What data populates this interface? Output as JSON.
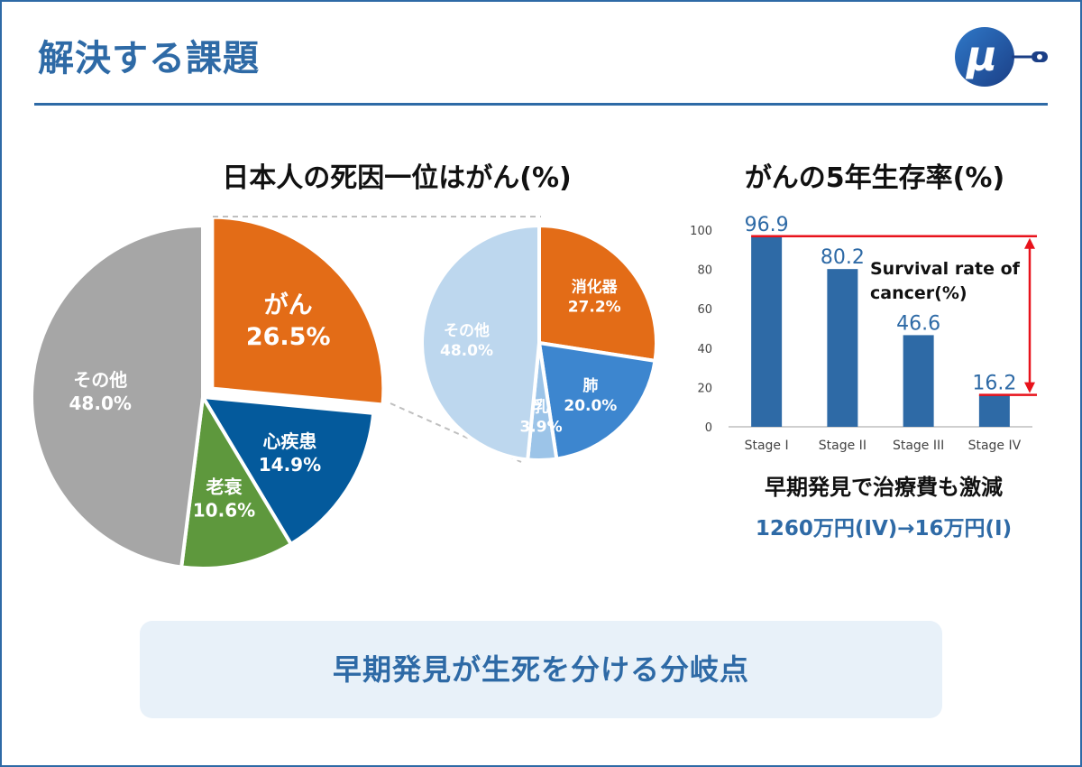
{
  "header": {
    "title": "解決する課題",
    "logo_text": "μ",
    "logo_icon": "mu-logo-icon"
  },
  "colors": {
    "accent": "#2e6aa6",
    "cancer": "#e36c17",
    "heart": "#045a9c",
    "old_age": "#5e983d",
    "other": "#a6a6a6",
    "digestive": "#e36c17",
    "lung": "#3d86cf",
    "breast": "#9cc4e8",
    "other_light": "#bdd7ee",
    "bar": "#2e6aa6",
    "arrow": "#e8121b"
  },
  "chart_data": [
    {
      "type": "pie",
      "title": "日本人の死因一位はがん(%)",
      "slices": [
        {
          "label": "がん",
          "value": 26.5,
          "value_text": "26.5%",
          "color": "#e36c17"
        },
        {
          "label": "心疾患",
          "value": 14.9,
          "value_text": "14.9%",
          "color": "#045a9c"
        },
        {
          "label": "老衰",
          "value": 10.6,
          "value_text": "10.6%",
          "color": "#5e983d"
        },
        {
          "label": "その他",
          "value": 48.0,
          "value_text": "48.0%",
          "color": "#a6a6a6"
        }
      ]
    },
    {
      "type": "pie",
      "title": "",
      "slices": [
        {
          "label": "消化器",
          "value": 27.2,
          "value_text": "27.2%",
          "color": "#e36c17"
        },
        {
          "label": "肺",
          "value": 20.0,
          "value_text": "20.0%",
          "color": "#3d86cf"
        },
        {
          "label": "乳",
          "value": 3.9,
          "value_text": "3.9%",
          "color": "#9cc4e8"
        },
        {
          "label": "その他",
          "value": 48.0,
          "value_text": "48.0%",
          "color": "#bdd7ee"
        }
      ]
    },
    {
      "type": "bar",
      "title": "がんの5年生存率(%)",
      "categories": [
        "Stage I",
        "Stage II",
        "Stage III",
        "Stage IV"
      ],
      "values": [
        96.9,
        80.2,
        46.6,
        16.2
      ],
      "value_labels": [
        "96.9",
        "80.2",
        "46.6",
        "16.2"
      ],
      "yticks": [
        "0",
        "20",
        "40",
        "60",
        "80",
        "100"
      ],
      "ylim": [
        0,
        100
      ],
      "annotation": "Survival rate of cancer(%)",
      "annotation_lines": [
        "Survival rate of",
        "cancer(%)"
      ]
    }
  ],
  "cost": {
    "note": "早期発見で治療費も激減",
    "value": "1260万円(IV)→16万円(I)"
  },
  "banner": {
    "text": "早期発見が生死を分ける分岐点"
  }
}
